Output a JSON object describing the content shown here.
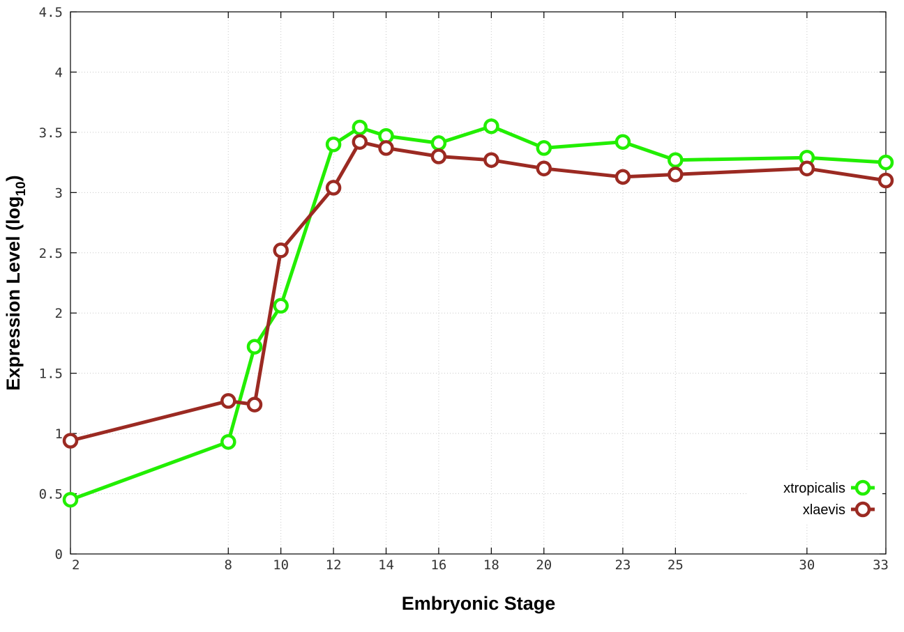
{
  "chart_data": {
    "type": "line",
    "title": "",
    "xlabel": "Embryonic Stage",
    "ylabel_main": "Expression Level (log",
    "ylabel_sub": "10",
    "ylabel_close": ")",
    "x_scale": "linear",
    "xlim": [
      2,
      33
    ],
    "ylim": [
      0,
      4.5
    ],
    "x_ticks": [
      2,
      8,
      10,
      12,
      14,
      16,
      18,
      20,
      23,
      25,
      30,
      33
    ],
    "y_ticks": [
      0,
      0.5,
      1,
      1.5,
      2,
      2.5,
      3,
      3.5,
      4,
      4.5
    ],
    "y_tick_labels": [
      "0",
      "0.5",
      "1",
      "1.5",
      "2",
      "2.5",
      "3",
      "3.5",
      "4",
      "4.5"
    ],
    "grid": true,
    "legend_position": "bottom-right",
    "marker": "circle",
    "x": [
      2,
      8,
      9,
      10,
      12,
      13,
      14,
      16,
      18,
      20,
      23,
      25,
      30,
      33
    ],
    "series": [
      {
        "name": "xtropicalis",
        "color": "#22ee00",
        "values": [
          0.45,
          0.93,
          1.72,
          2.06,
          3.4,
          3.54,
          3.47,
          3.41,
          3.55,
          3.37,
          3.42,
          3.27,
          3.29,
          3.25
        ]
      },
      {
        "name": "xlaevis",
        "color": "#9b2a22",
        "values": [
          0.94,
          1.27,
          1.24,
          2.52,
          3.04,
          3.42,
          3.37,
          3.3,
          3.27,
          3.2,
          3.13,
          3.15,
          3.2,
          3.1
        ]
      }
    ]
  }
}
